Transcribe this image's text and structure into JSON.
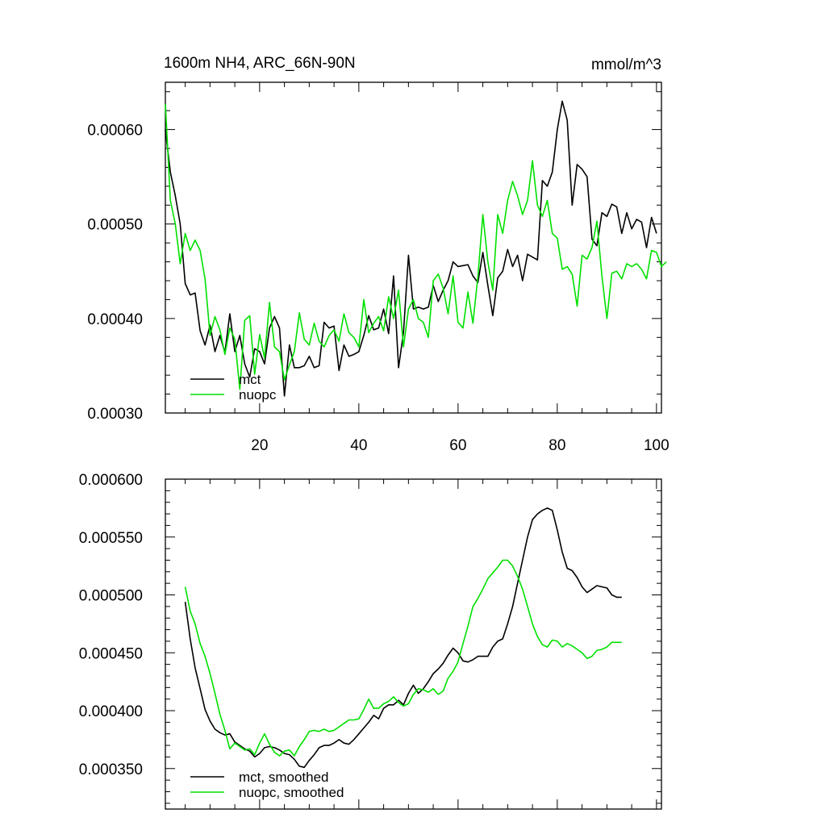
{
  "colors": {
    "mct": "#000000",
    "nuopc": "#00e000",
    "axis": "#000000",
    "background": "#ffffff"
  },
  "chart_data": [
    {
      "type": "line",
      "title": "1600m NH4, ARC_66N-90N",
      "units": "mmol/m^3",
      "xlim": [
        1,
        101
      ],
      "ylim": [
        0.0003,
        0.00065
      ],
      "x_ticks": [
        20,
        40,
        60,
        80,
        100
      ],
      "x_tick_labels": [
        "20",
        "40",
        "60",
        "80",
        "100"
      ],
      "y_ticks": [
        0.0003,
        0.0004,
        0.0005,
        0.0006
      ],
      "y_tick_labels": [
        "0.00030",
        "0.00040",
        "0.00050",
        "0.00060"
      ],
      "legend": {
        "position": "bottom-left",
        "entries": [
          "mct",
          "nuopc"
        ]
      },
      "series": [
        {
          "name": "mct",
          "x_start": 1,
          "values": [
            0.0006,
            0.000555,
            0.00053,
            0.0005,
            0.000437,
            0.000425,
            0.000427,
            0.000387,
            0.000372,
            0.000393,
            0.000365,
            0.000382,
            0.000364,
            0.000405,
            0.000365,
            0.000382,
            0.000352,
            0.000338,
            0.000368,
            0.000365,
            0.000352,
            0.00039,
            0.000402,
            0.00039,
            0.000318,
            0.000372,
            0.000348,
            0.000348,
            0.00035,
            0.00036,
            0.000348,
            0.00035,
            0.000396,
            0.00039,
            0.000392,
            0.000345,
            0.000372,
            0.00036,
            0.000362,
            0.000365,
            0.000382,
            0.000403,
            0.000388,
            0.00039,
            0.00041,
            0.000384,
            0.000445,
            0.000348,
            0.000385,
            0.000467,
            0.00041,
            0.000412,
            0.00041,
            0.000412,
            0.000435,
            0.000418,
            0.00043,
            0.00044,
            0.00046,
            0.000455,
            0.000456,
            0.000457,
            0.000445,
            0.000438,
            0.00047,
            0.000435,
            0.000403,
            0.000443,
            0.00045,
            0.000473,
            0.000455,
            0.000467,
            0.00044,
            0.000468,
            0.000465,
            0.000462,
            0.000546,
            0.00054,
            0.000555,
            0.0006,
            0.00063,
            0.00061,
            0.00052,
            0.000563,
            0.000558,
            0.00055,
            0.000484,
            0.000477,
            0.000512,
            0.000508,
            0.000521,
            0.000518,
            0.00049,
            0.000512,
            0.000495,
            0.000505,
            0.000502,
            0.000475,
            0.000507,
            0.00049
          ]
        },
        {
          "name": "nuopc",
          "x_start": 1,
          "values": [
            0.000627,
            0.000525,
            0.0005,
            0.000458,
            0.00049,
            0.000472,
            0.000483,
            0.000472,
            0.000442,
            0.000382,
            0.000402,
            0.000388,
            0.000362,
            0.00039,
            0.000378,
            0.000325,
            0.000398,
            0.000403,
            0.000341,
            0.000383,
            0.000358,
            0.000417,
            0.00037,
            0.000365,
            0.000335,
            0.000351,
            0.000365,
            0.000406,
            0.000378,
            0.000372,
            0.000395,
            0.000376,
            0.00037,
            0.000382,
            0.000388,
            0.000376,
            0.000405,
            0.000385,
            0.00038,
            0.00037,
            0.00042,
            0.000385,
            0.000395,
            0.000402,
            0.000387,
            0.000423,
            0.0004,
            0.00043,
            0.00037,
            0.00041,
            0.00042,
            0.0004,
            0.000396,
            0.00038,
            0.00044,
            0.000447,
            0.000432,
            0.000405,
            0.000445,
            0.000396,
            0.00039,
            0.000428,
            0.000395,
            0.000445,
            0.00051,
            0.00046,
            0.00043,
            0.00051,
            0.00049,
            0.000525,
            0.000545,
            0.00053,
            0.00051,
            0.000525,
            0.000567,
            0.00052,
            0.000508,
            0.000525,
            0.00049,
            0.000485,
            0.000452,
            0.000455,
            0.000447,
            0.000413,
            0.000467,
            0.000463,
            0.000475,
            0.000503,
            0.000445,
            0.0004,
            0.000448,
            0.00045,
            0.000442,
            0.000458,
            0.000455,
            0.000458,
            0.000452,
            0.000442,
            0.000472,
            0.00047,
            0.000455,
            0.00046
          ]
        }
      ]
    },
    {
      "type": "line",
      "title": "",
      "xlim": [
        1,
        101
      ],
      "ylim": [
        0.000315,
        0.0006
      ],
      "x_ticks": [
        20,
        40,
        60,
        80,
        100
      ],
      "y_ticks": [
        0.00035,
        0.0004,
        0.00045,
        0.0005,
        0.00055,
        0.0006
      ],
      "y_tick_labels": [
        "0.000350",
        "0.000400",
        "0.000450",
        "0.000500",
        "0.000550",
        "0.000600"
      ],
      "legend": {
        "position": "bottom-left",
        "entries": [
          "mct, smoothed",
          "nuopc, smoothed"
        ]
      },
      "series": [
        {
          "name": "mct, smoothed",
          "x_start": 5,
          "values": [
            0.000494,
            0.000462,
            0.000437,
            0.000419,
            0.000401,
            0.000391,
            0.000384,
            0.000381,
            0.000379,
            0.00038,
            0.000373,
            0.00037,
            0.000367,
            0.000365,
            0.00036,
            0.000363,
            0.000368,
            0.000369,
            0.000368,
            0.000366,
            0.000363,
            0.000362,
            0.000358,
            0.000352,
            0.000351,
            0.000357,
            0.000362,
            0.000368,
            0.00037,
            0.00037,
            0.000372,
            0.000375,
            0.000372,
            0.000371,
            0.000375,
            0.00038,
            0.000385,
            0.00039,
            0.000396,
            0.000393,
            0.000402,
            0.000405,
            0.000405,
            0.000409,
            0.000405,
            0.000415,
            0.000422,
            0.000415,
            0.000419,
            0.000425,
            0.000432,
            0.000436,
            0.000441,
            0.000448,
            0.000454,
            0.00045,
            0.000443,
            0.000442,
            0.000444,
            0.000447,
            0.000447,
            0.000447,
            0.000455,
            0.00046,
            0.000462,
            0.000475,
            0.00049,
            0.00051,
            0.00053,
            0.00055,
            0.000565,
            0.00057,
            0.000573,
            0.000575,
            0.000573,
            0.000556,
            0.000537,
            0.000523,
            0.000521,
            0.000515,
            0.000507,
            0.000502,
            0.000505,
            0.000508,
            0.000507,
            0.000506,
            0.0005,
            0.000498,
            0.000498
          ]
        },
        {
          "name": "nuopc, smoothed",
          "x_start": 5,
          "values": [
            0.000507,
            0.000486,
            0.000475,
            0.000458,
            0.000447,
            0.000432,
            0.000415,
            0.000397,
            0.000383,
            0.000367,
            0.000372,
            0.000369,
            0.000366,
            0.000367,
            0.000362,
            0.000372,
            0.00038,
            0.000371,
            0.000364,
            0.000361,
            0.000365,
            0.000366,
            0.000361,
            0.000369,
            0.000375,
            0.000382,
            0.000383,
            0.000382,
            0.000384,
            0.000382,
            0.000383,
            0.000386,
            0.000389,
            0.000392,
            0.000392,
            0.000393,
            0.000401,
            0.00041,
            0.000402,
            0.000402,
            0.000406,
            0.000408,
            0.000412,
            0.000407,
            0.000404,
            0.000406,
            0.000414,
            0.000419,
            0.000418,
            0.000416,
            0.000419,
            0.000414,
            0.000417,
            0.000428,
            0.000434,
            0.000442,
            0.000458,
            0.000473,
            0.00049,
            0.000497,
            0.000505,
            0.000514,
            0.000519,
            0.000524,
            0.00053,
            0.00053,
            0.000525,
            0.000516,
            0.000505,
            0.00049,
            0.000475,
            0.000464,
            0.000457,
            0.000455,
            0.000461,
            0.00046,
            0.000455,
            0.000458,
            0.000456,
            0.000453,
            0.00045,
            0.000445,
            0.000447,
            0.000452,
            0.000453,
            0.000455,
            0.000459,
            0.000459,
            0.000459
          ]
        }
      ]
    }
  ]
}
